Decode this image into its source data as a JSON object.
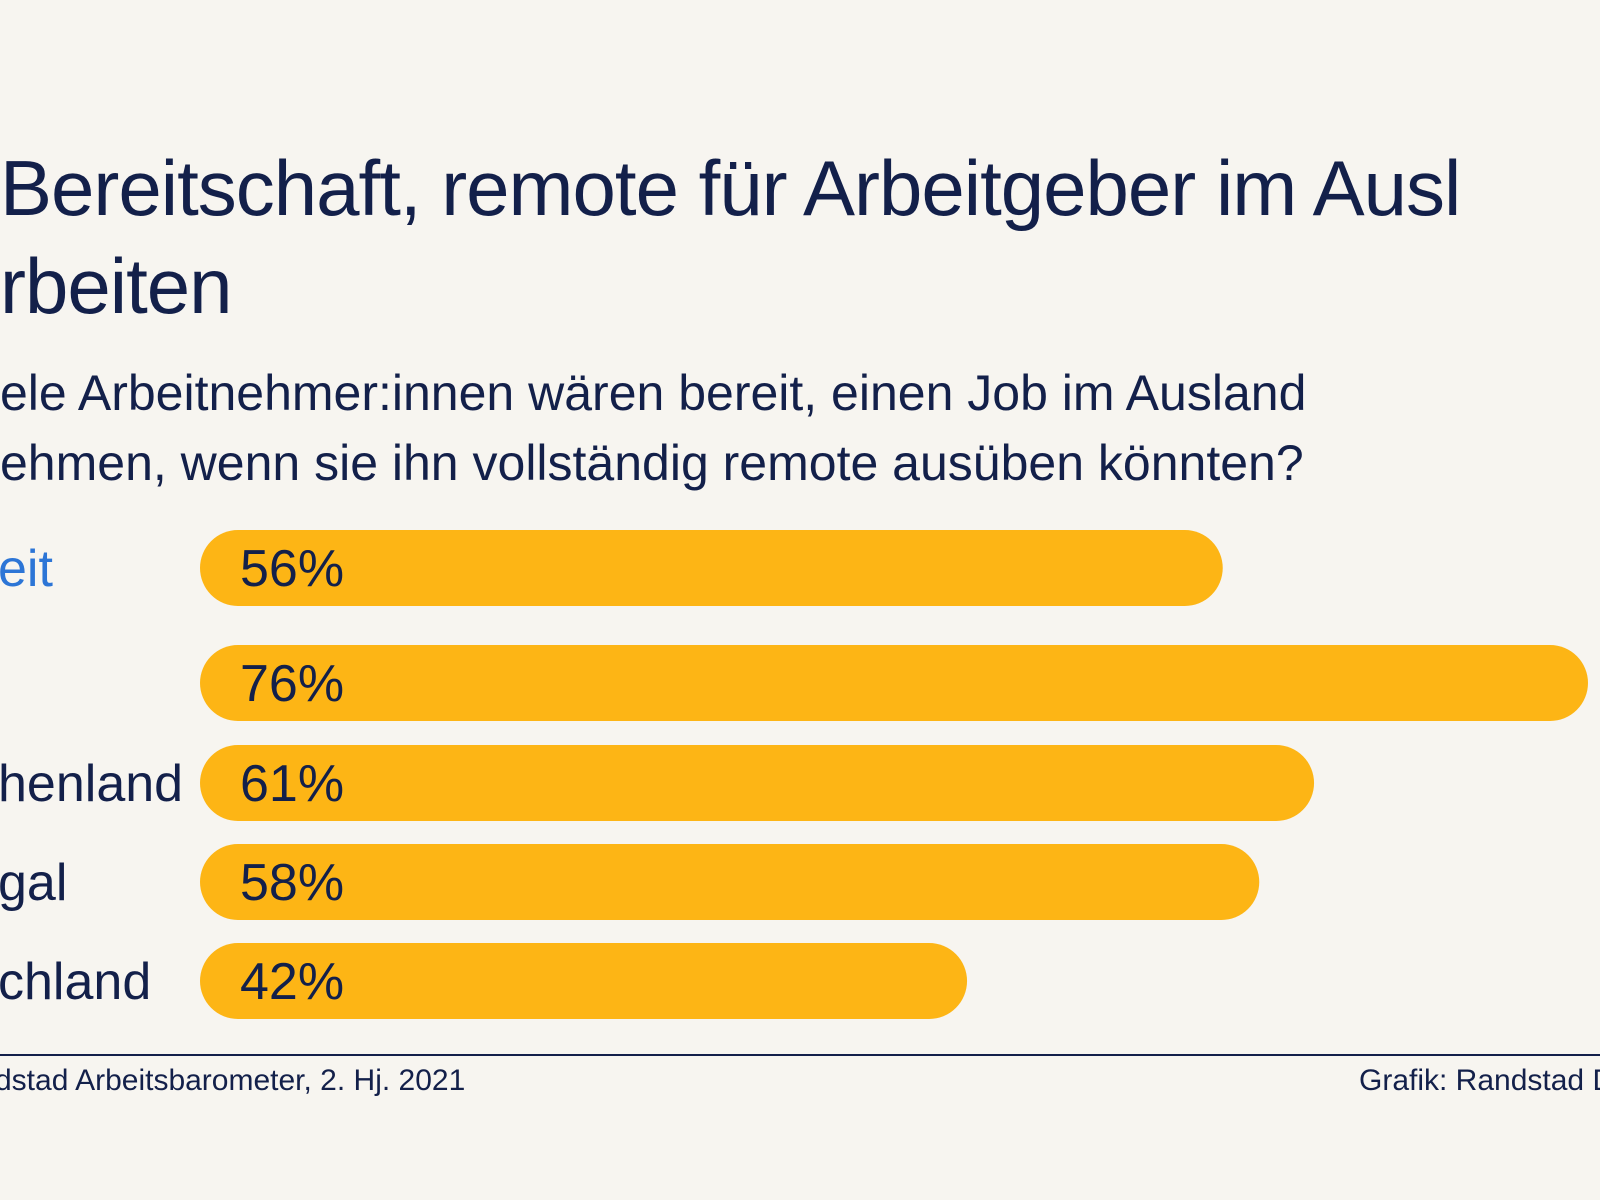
{
  "header": {
    "title_line1": "Bereitschaft, remote für Arbeitgeber im Ausl",
    "title_line2": "rbeiten",
    "subtitle_line1": "ele Arbeitnehmer:innen wären bereit, einen Job im Ausland",
    "subtitle_line2": "ehmen, wenn sie ihn vollständig remote ausüben könnten?"
  },
  "chart_data": {
    "type": "bar",
    "orientation": "horizontal",
    "categories": [
      "eit",
      "",
      "henland",
      "gal",
      "chland"
    ],
    "highlighted_category_index": 0,
    "values": [
      56,
      76,
      61,
      58,
      42
    ],
    "value_suffix": "%",
    "xlim": [
      0,
      76
    ],
    "bar_color": "#fdb515",
    "label_color": "#13204a",
    "accent_label_color": "#2c75d6"
  },
  "footer": {
    "source": "dstad Arbeitsbarometer, 2. Hj. 2021",
    "credit": "Grafik: Randstad D"
  }
}
